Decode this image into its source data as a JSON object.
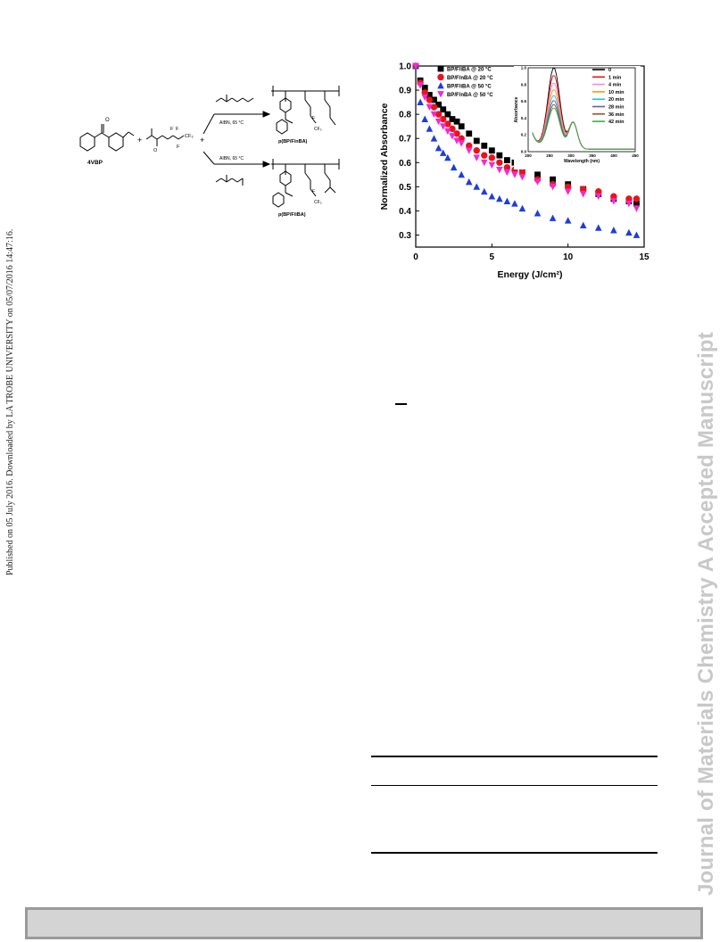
{
  "sidebar": {
    "publication_note": "Published on 05 July 2016. Downloaded by LA TROBE UNIVERSITY on 05/07/2016 14:47:16.",
    "watermark": "Journal of Materials Chemistry A Accepted Manuscript"
  },
  "scheme": {
    "monomer_label": "4VBP",
    "cf3_label": "CF₃",
    "f_label": "F",
    "plus": "+",
    "top_arrow_condition": "AIBN, 65 °C",
    "bottom_arrow_condition": "AIBN, 65 °C",
    "top_product_label": "p(BP/F/nBA)",
    "bottom_product_label": "p(BP/F/iBA)"
  },
  "chart_data": {
    "type": "scatter",
    "xlabel": "Energy (J/cm²)",
    "ylabel": "Normalized Absorbance",
    "xlim": [
      0,
      15
    ],
    "ylim": [
      0.25,
      1.0
    ],
    "xticks": [
      "0",
      "5",
      "10",
      "15"
    ],
    "yticks": [
      "0.3",
      "0.4",
      "0.5",
      "0.6",
      "0.7",
      "0.8",
      "0.9",
      "1.0"
    ],
    "legend_position": "top-left",
    "series": [
      {
        "name": "BP/F/iBA @ 20 °C",
        "marker": "square",
        "color": "#000000",
        "x": [
          0,
          0.3,
          0.6,
          0.9,
          1.2,
          1.5,
          1.8,
          2.1,
          2.4,
          2.7,
          3.0,
          3.5,
          4.0,
          4.5,
          5.0,
          5.5,
          6.0,
          6.5,
          7.0,
          8.0,
          9.0,
          10.0,
          11.0,
          12.0,
          13.0,
          14.0,
          14.5
        ],
        "y": [
          1.0,
          0.94,
          0.91,
          0.88,
          0.86,
          0.84,
          0.82,
          0.8,
          0.78,
          0.77,
          0.75,
          0.72,
          0.69,
          0.67,
          0.65,
          0.63,
          0.61,
          0.6,
          0.58,
          0.55,
          0.53,
          0.51,
          0.49,
          0.47,
          0.45,
          0.44,
          0.43
        ]
      },
      {
        "name": "BP/F/nBA @ 20 °C",
        "marker": "circle",
        "color": "#e8131b",
        "x": [
          0,
          0.3,
          0.6,
          0.9,
          1.2,
          1.5,
          1.8,
          2.1,
          2.4,
          2.7,
          3.0,
          3.5,
          4.0,
          4.5,
          5.0,
          5.5,
          6.0,
          6.5,
          7.0,
          8.0,
          9.0,
          10.0,
          11.0,
          12.0,
          13.0,
          14.0,
          14.5
        ],
        "y": [
          1.0,
          0.93,
          0.89,
          0.86,
          0.83,
          0.8,
          0.78,
          0.76,
          0.74,
          0.72,
          0.7,
          0.67,
          0.65,
          0.63,
          0.62,
          0.6,
          0.58,
          0.57,
          0.56,
          0.53,
          0.51,
          0.5,
          0.49,
          0.48,
          0.46,
          0.45,
          0.45
        ]
      },
      {
        "name": "BP/F/iBA @ 50 °C",
        "marker": "triangle-up",
        "color": "#1f3ddb",
        "x": [
          0,
          0.3,
          0.6,
          0.9,
          1.2,
          1.5,
          1.8,
          2.1,
          2.5,
          3.0,
          3.5,
          4.0,
          4.5,
          5.0,
          5.5,
          6.0,
          6.5,
          7.0,
          8.0,
          9.0,
          10.0,
          11.0,
          12.0,
          13.0,
          14.0,
          14.5
        ],
        "y": [
          1.0,
          0.85,
          0.78,
          0.74,
          0.7,
          0.66,
          0.64,
          0.62,
          0.58,
          0.55,
          0.52,
          0.5,
          0.48,
          0.46,
          0.45,
          0.44,
          0.43,
          0.41,
          0.39,
          0.37,
          0.36,
          0.34,
          0.33,
          0.32,
          0.31,
          0.3
        ]
      },
      {
        "name": "BP/F/nBA @ 50 °C",
        "marker": "triangle-down",
        "color": "#f22ad0",
        "x": [
          0,
          0.3,
          0.6,
          0.9,
          1.2,
          1.5,
          1.8,
          2.1,
          2.4,
          2.7,
          3.0,
          3.5,
          4.0,
          4.5,
          5.0,
          5.5,
          6.0,
          6.5,
          7.0,
          8.0,
          9.0,
          10.0,
          11.0,
          12.0,
          13.0,
          14.0,
          14.5
        ],
        "y": [
          1.0,
          0.92,
          0.87,
          0.83,
          0.8,
          0.77,
          0.75,
          0.73,
          0.71,
          0.69,
          0.68,
          0.65,
          0.62,
          0.6,
          0.59,
          0.57,
          0.56,
          0.55,
          0.54,
          0.52,
          0.5,
          0.48,
          0.47,
          0.46,
          0.44,
          0.43,
          0.41
        ]
      }
    ],
    "inset": {
      "type": "line",
      "xlabel": "Wavelength (nm)",
      "ylabel": "Absorbance",
      "xlim": [
        200,
        450
      ],
      "ylim": [
        0,
        1.0
      ],
      "xticks": [
        "200",
        "250",
        "300",
        "350",
        "400",
        "450"
      ],
      "yticks": [
        "0.0",
        "0.2",
        "0.4",
        "0.6",
        "0.8",
        "1.0"
      ],
      "legend_position": "top-right",
      "peak_nm": 260,
      "series": [
        {
          "name": "0",
          "color": "#000000",
          "peak": 0.97
        },
        {
          "name": "1 min",
          "color": "#e8131b",
          "peak": 0.88
        },
        {
          "name": "4 min",
          "color": "#ff88c8",
          "peak": 0.79
        },
        {
          "name": "10 min",
          "color": "#ff9900",
          "peak": 0.71
        },
        {
          "name": "20 min",
          "color": "#22c7d9",
          "peak": 0.64
        },
        {
          "name": "28 min",
          "color": "#6a55cc",
          "peak": 0.58
        },
        {
          "name": "36 min",
          "color": "#a0522d",
          "peak": 0.53
        },
        {
          "name": "42 min",
          "color": "#3cb043",
          "peak": 0.49
        }
      ]
    }
  }
}
